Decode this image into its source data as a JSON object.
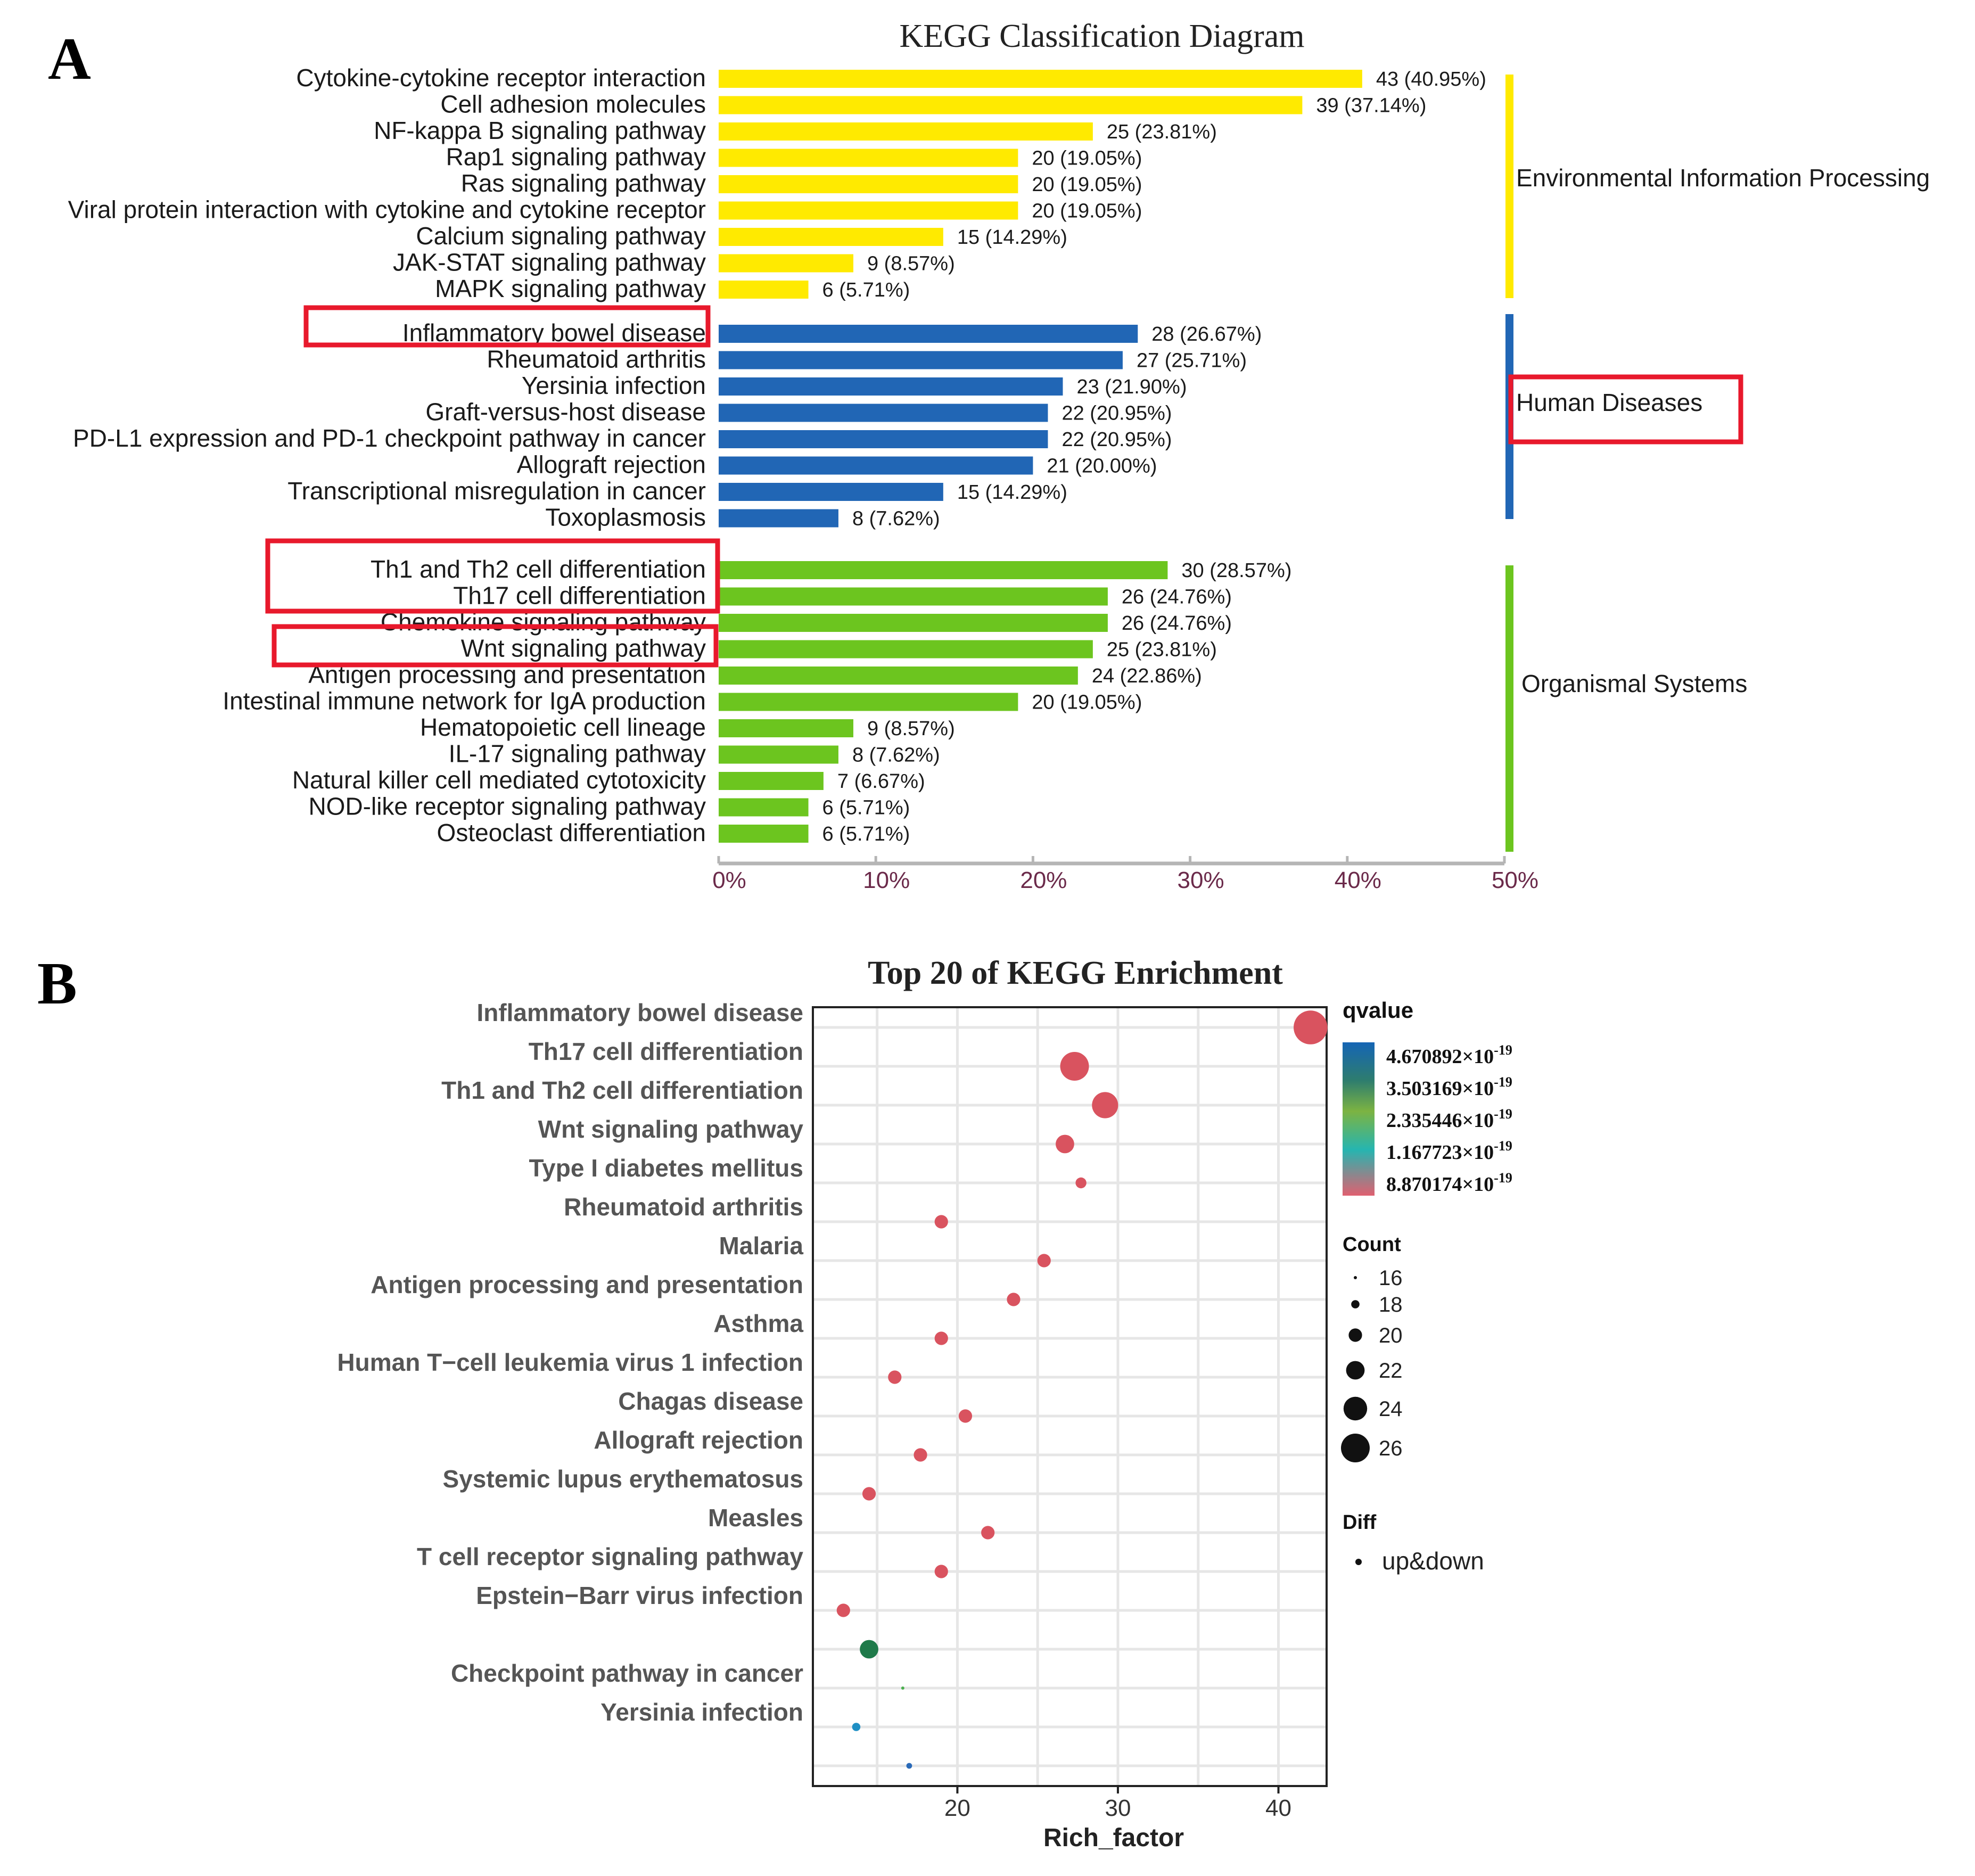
{
  "panel_a": {
    "letter": "A",
    "title": "KEGG Classification Diagram",
    "axis_ticks": [
      "0%",
      "10%",
      "20%",
      "30%",
      "40%",
      "50%"
    ],
    "highlight_color": "#e8192c",
    "groups": [
      {
        "name": "Environmental Information Processing",
        "color": "#ffea00",
        "highlighted": false
      },
      {
        "name": "Human Diseases",
        "color": "#2166b5",
        "highlighted": true
      },
      {
        "name": "Organismal Systems",
        "color": "#6cc51f",
        "highlighted": false
      }
    ]
  },
  "panel_b": {
    "letter": "B",
    "title": "Top 20 of KEGG Enrichment",
    "xlabel": "Rich_factor",
    "x_ticks": [
      "20",
      "30",
      "40"
    ],
    "legend": {
      "qvalue_title": "qvalue",
      "qvalue_labels": [
        "4.670892×10",
        "3.503169×10",
        "2.335446×10",
        "1.167723×10",
        "8.870174×10"
      ],
      "exponent": "-19",
      "count_title": "Count",
      "count_labels": [
        "16",
        "18",
        "20",
        "22",
        "24",
        "26"
      ],
      "diff_title": "Diff",
      "diff_label": "up&down"
    }
  },
  "chart_data": [
    {
      "type": "bar",
      "title": "KEGG Classification Diagram",
      "orientation": "horizontal",
      "xlim": [
        0,
        50
      ],
      "x_unit": "percent",
      "groups": [
        {
          "name": "Environmental Information Processing",
          "color": "#ffea00",
          "categories": [
            "Cytokine-cytokine receptor interaction",
            "Cell adhesion molecules",
            "NF-kappa B signaling pathway",
            "Rap1 signaling pathway",
            "Ras signaling pathway",
            "Viral protein interaction with cytokine and cytokine receptor",
            "Calcium signaling pathway",
            "JAK-STAT signaling pathway",
            "MAPK signaling pathway"
          ],
          "values": [
            40.95,
            37.14,
            23.81,
            19.05,
            19.05,
            19.05,
            14.29,
            8.57,
            5.71
          ],
          "labels": [
            "43 (40.95%)",
            "39 (37.14%)",
            "25 (23.81%)",
            "20 (19.05%)",
            "20 (19.05%)",
            "20 (19.05%)",
            "15 (14.29%)",
            "9 (8.57%)",
            "6 (5.71%)"
          ],
          "highlighted": [
            false,
            false,
            false,
            false,
            false,
            false,
            false,
            false,
            false
          ]
        },
        {
          "name": "Human Diseases",
          "color": "#2166b5",
          "categories": [
            "Inflammatory bowel disease",
            "Rheumatoid arthritis",
            "Yersinia infection",
            "Graft-versus-host disease",
            "PD-L1 expression and PD-1 checkpoint pathway in cancer",
            "Allograft rejection",
            "Transcriptional misregulation in cancer",
            "Toxoplasmosis"
          ],
          "values": [
            26.67,
            25.71,
            21.9,
            20.95,
            20.95,
            20.0,
            14.29,
            7.62
          ],
          "labels": [
            "28 (26.67%)",
            "27 (25.71%)",
            "23 (21.90%)",
            "22 (20.95%)",
            "22 (20.95%)",
            "21 (20.00%)",
            "15 (14.29%)",
            "8 (7.62%)"
          ],
          "highlighted": [
            true,
            false,
            false,
            false,
            false,
            false,
            false,
            false
          ]
        },
        {
          "name": "Organismal Systems",
          "color": "#6cc51f",
          "categories": [
            "Th1 and Th2 cell differentiation",
            "Th17 cell differentiation",
            "Chemokine signaling pathway",
            "Wnt signaling pathway",
            "Antigen processing and presentation",
            "Intestinal immune network for IgA production",
            "Hematopoietic cell lineage",
            "IL-17 signaling pathway",
            "Natural killer cell mediated cytotoxicity",
            "NOD-like receptor signaling pathway",
            "Osteoclast differentiation"
          ],
          "values": [
            28.57,
            24.76,
            24.76,
            23.81,
            22.86,
            19.05,
            8.57,
            7.62,
            6.67,
            5.71,
            5.71
          ],
          "labels": [
            "30 (28.57%)",
            "26 (24.76%)",
            "26 (24.76%)",
            "25 (23.81%)",
            "24 (22.86%)",
            "20 (19.05%)",
            "9 (8.57%)",
            "8 (7.62%)",
            "7 (6.67%)",
            "6 (5.71%)",
            "6 (5.71%)"
          ],
          "highlighted": [
            true,
            true,
            false,
            true,
            false,
            false,
            false,
            false,
            false,
            false,
            false
          ]
        }
      ]
    },
    {
      "type": "scatter",
      "title": "Top 20 of KEGG Enrichment",
      "xlabel": "Rich_factor",
      "xlim": [
        11,
        43
      ],
      "x_ticks": [
        20,
        30,
        40
      ],
      "grid": true,
      "categories": [
        "Inflammatory bowel disease",
        "Th17 cell differentiation",
        "Th1 and Th2 cell differentiation",
        "Wnt signaling pathway",
        "Type I diabetes mellitus",
        "Rheumatoid arthritis",
        "Malaria",
        "Antigen processing and presentation",
        "Asthma",
        "Human T−cell leukemia virus 1 infection",
        "Chagas disease",
        "Allograft rejection",
        "Systemic lupus erythematosus",
        "Measles",
        "T cell receptor signaling pathway",
        "Epstein−Barr virus infection",
        "",
        "Checkpoint pathway in cancer",
        "Yersinia infection",
        ""
      ],
      "highlighted": [
        true,
        true,
        true,
        true,
        false,
        false,
        false,
        false,
        false,
        false,
        false,
        false,
        false,
        false,
        false,
        false,
        false,
        false,
        false,
        false
      ],
      "points": [
        {
          "x": 42.0,
          "count": 28,
          "color": "#d9535f"
        },
        {
          "x": 27.3,
          "count": 26,
          "color": "#d9535f"
        },
        {
          "x": 29.2,
          "count": 25,
          "color": "#d9535f"
        },
        {
          "x": 26.7,
          "count": 22,
          "color": "#d9535f"
        },
        {
          "x": 27.7,
          "count": 19,
          "color": "#d9535f"
        },
        {
          "x": 19.0,
          "count": 20,
          "color": "#d9535f"
        },
        {
          "x": 25.4,
          "count": 20,
          "color": "#d9535f"
        },
        {
          "x": 23.5,
          "count": 20,
          "color": "#d9535f"
        },
        {
          "x": 19.0,
          "count": 20,
          "color": "#d9535f"
        },
        {
          "x": 16.1,
          "count": 20,
          "color": "#d9535f"
        },
        {
          "x": 20.5,
          "count": 20,
          "color": "#d9535f"
        },
        {
          "x": 17.7,
          "count": 20,
          "color": "#d9535f"
        },
        {
          "x": 14.5,
          "count": 20,
          "color": "#d9535f"
        },
        {
          "x": 21.9,
          "count": 20,
          "color": "#d9535f"
        },
        {
          "x": 19.0,
          "count": 20,
          "color": "#d9535f"
        },
        {
          "x": 12.9,
          "count": 20,
          "color": "#d9535f"
        },
        {
          "x": 14.5,
          "count": 22,
          "color": "#1f7a4a"
        },
        {
          "x": 16.6,
          "count": 16,
          "color": "#4caf50"
        },
        {
          "x": 13.7,
          "count": 18,
          "color": "#1f8fc4"
        },
        {
          "x": 17.0,
          "count": 17,
          "color": "#2a6ab8"
        }
      ]
    }
  ]
}
